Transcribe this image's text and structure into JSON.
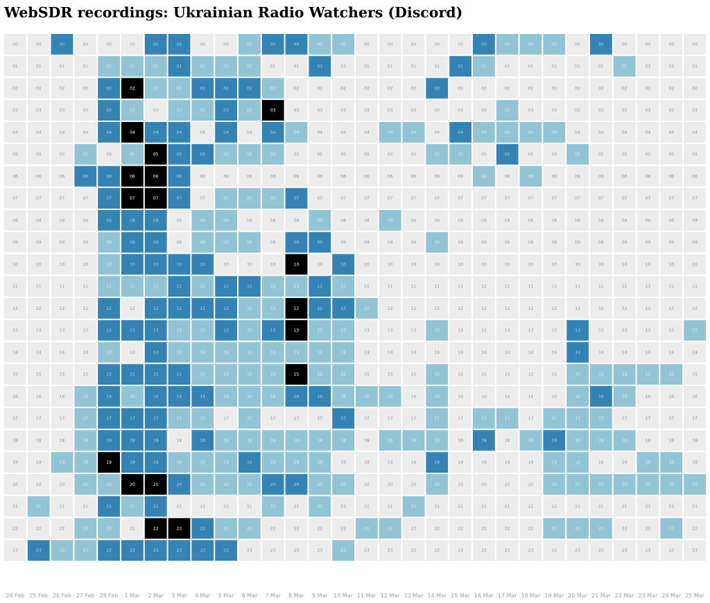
{
  "title": "WebSDR recordings: Ukrainian Radio Watchers (Discord)",
  "chart_data": {
    "type": "heatmap",
    "title": "WebSDR recordings: Ukrainian Radio Watchers (Discord)",
    "x_categories": [
      "24 Feb",
      "25 Feb",
      "26 Feb",
      "27 Feb",
      "28 Feb",
      "1 Mar",
      "2 Mar",
      "3 Mar",
      "4 Mar",
      "5 Mar",
      "6 Mar",
      "7 Mar",
      "8 Mar",
      "9 Mar",
      "10 Mar",
      "11 Mar",
      "12 Mar",
      "13 Mar",
      "14 Mar",
      "15 Mar",
      "16 Mar",
      "17 Mar",
      "18 Mar",
      "19 Mar",
      "20 Mar",
      "21 Mar",
      "22 Mar",
      "23 Mar",
      "24 Mar",
      "25 Mar"
    ],
    "y_categories": [
      "00",
      "01",
      "02",
      "03",
      "04",
      "05",
      "06",
      "07",
      "08",
      "09",
      "10",
      "11",
      "12",
      "13",
      "14",
      "15",
      "16",
      "17",
      "18",
      "19",
      "20",
      "21",
      "22",
      "23"
    ],
    "value_levels": [
      "none",
      "low",
      "medium",
      "high"
    ],
    "colors": {
      "none": "#ececec",
      "low": "#92c4d5",
      "medium": "#3582b5",
      "high": "#000000"
    },
    "label_colors": {
      "none": "#999999",
      "low": "#d4e9f0",
      "medium": "#a8d0e6",
      "high": "#ffffff"
    },
    "levels_by_hour": [
      "002000220012211000002111020000",
      "000011121110020000021000001000",
      "000023112221000000200000000000",
      "000021011213000000000100000000",
      "000023220202100011021111000000",
      "000101322111000000110200100000",
      "000223320000000000001010000000",
      "000023320111200000000000000000",
      "000022201100010010000000000000",
      "000012201110220000100000000000",
      "000012222000302000000000000000",
      "000011121221121000000000000000",
      "000020222211322100000000000000",
      "000022211212311000100000200001",
      "000010211111111000000000200000",
      "000022221111311000100000111110",
      "000121222111221110100000121000",
      "000122211010002000101101110000",
      "000122202111111011102012111000",
      "001132211121110000200001100110",
      "000113321112211000100001111111",
      "010021200001010001000000000000",
      "000110332110000110000001110010",
      "021122222200001000000000000000"
    ]
  }
}
